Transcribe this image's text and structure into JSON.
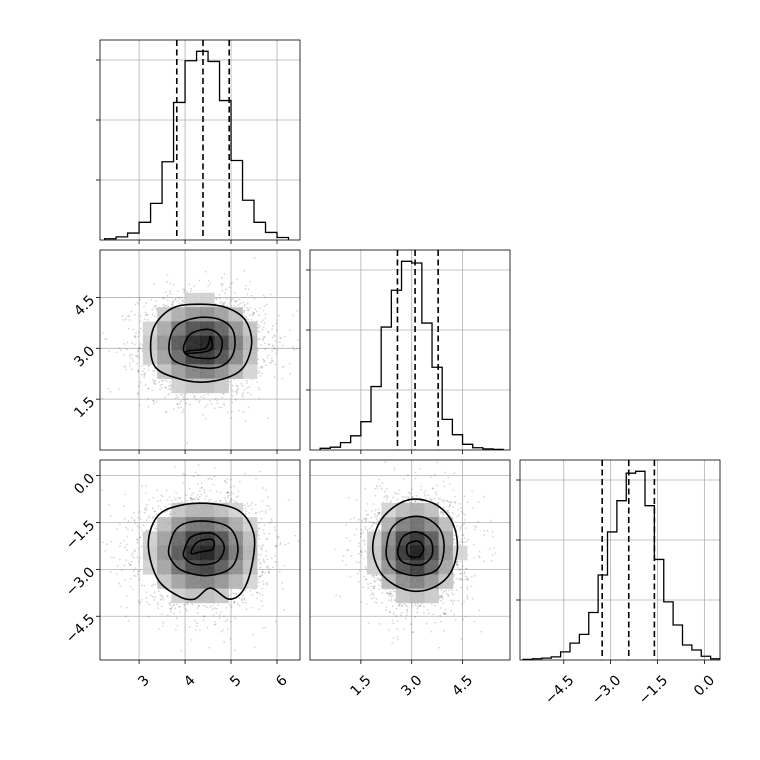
{
  "chart_data": {
    "type": "corner",
    "grid": true,
    "parameters": [
      {
        "range": [
          2.15,
          6.5
        ],
        "ticks": [
          3,
          4,
          5,
          6
        ],
        "tick_labels": [
          "3",
          "4",
          "5",
          "6"
        ],
        "quantiles": [
          3.82,
          4.39,
          4.96
        ],
        "hist_bins": [
          2.25,
          2.5,
          2.75,
          3.0,
          3.25,
          3.5,
          3.75,
          4.0,
          4.25,
          4.5,
          4.75,
          5.0,
          5.25,
          5.5,
          5.75,
          6.0,
          6.25
        ],
        "hist_counts": [
          2,
          5,
          11,
          28,
          58,
          124,
          218,
          284,
          299,
          283,
          221,
          126,
          63,
          28,
          12,
          4
        ]
      },
      {
        "range": [
          0.0,
          5.9
        ],
        "ticks": [
          1.5,
          3.0,
          4.5
        ],
        "tick_labels": [
          "1.5",
          "3.0",
          "4.5"
        ],
        "quantiles": [
          2.58,
          3.1,
          3.78
        ],
        "hist_bins": [
          0.3,
          0.6,
          0.9,
          1.2,
          1.5,
          1.8,
          2.1,
          2.4,
          2.7,
          3.0,
          3.3,
          3.6,
          3.9,
          4.2,
          4.5,
          4.8,
          5.1,
          5.4,
          5.7
        ],
        "hist_counts": [
          3,
          5,
          13,
          25,
          50,
          112,
          217,
          282,
          333,
          330,
          224,
          146,
          54,
          27,
          10,
          4,
          2,
          1
        ]
      },
      {
        "range": [
          -5.9,
          0.5
        ],
        "ticks": [
          -4.5,
          -3.0,
          -1.5,
          0.0
        ],
        "tick_labels": [
          "−4.5",
          "−3.0",
          "−1.5",
          "0.0"
        ],
        "quantiles": [
          -3.27,
          -2.42,
          -1.6
        ],
        "hist_bins": [
          -5.8,
          -5.5,
          -5.2,
          -4.9,
          -4.6,
          -4.3,
          -4.0,
          -3.7,
          -3.4,
          -3.1,
          -2.8,
          -2.5,
          -2.2,
          -1.9,
          -1.6,
          -1.3,
          -1.0,
          -0.7,
          -0.4,
          -0.1,
          0.2,
          0.5
        ],
        "hist_counts": [
          1,
          2,
          3,
          5,
          13,
          27,
          41,
          76,
          136,
          205,
          255,
          299,
          302,
          247,
          161,
          93,
          56,
          24,
          16,
          6,
          2
        ]
      }
    ],
    "pairs": [
      {
        "x_param": 0,
        "y_param": 1,
        "center": [
          4.39,
          3.1
        ],
        "spread": [
          0.68,
          0.75
        ],
        "correlation": 0.0,
        "contours": [
          [
            [
              3.25,
              3.05
            ],
            [
              3.35,
              3.7
            ],
            [
              3.75,
              4.2
            ],
            [
              4.35,
              4.3
            ],
            [
              4.9,
              4.2
            ],
            [
              5.3,
              3.85
            ],
            [
              5.45,
              3.2
            ],
            [
              5.3,
              2.5
            ],
            [
              4.95,
              2.15
            ],
            [
              4.35,
              2.0
            ],
            [
              3.75,
              2.15
            ],
            [
              3.35,
              2.45
            ]
          ],
          [
            [
              3.65,
              3.1
            ],
            [
              3.8,
              3.65
            ],
            [
              4.25,
              3.9
            ],
            [
              4.75,
              3.85
            ],
            [
              5.05,
              3.5
            ],
            [
              5.05,
              2.85
            ],
            [
              4.75,
              2.45
            ],
            [
              4.2,
              2.45
            ],
            [
              3.75,
              2.65
            ]
          ],
          [
            [
              3.98,
              3.1
            ],
            [
              4.15,
              3.45
            ],
            [
              4.55,
              3.55
            ],
            [
              4.8,
              3.25
            ],
            [
              4.7,
              2.75
            ],
            [
              4.25,
              2.72
            ],
            [
              4.0,
              2.85
            ]
          ],
          [
            [
              4.05,
              2.92
            ],
            [
              4.45,
              3.0
            ],
            [
              4.55,
              3.35
            ],
            [
              4.55,
              2.95
            ],
            [
              4.05,
              2.85
            ]
          ]
        ]
      },
      {
        "x_param": 0,
        "y_param": 2,
        "center": [
          4.39,
          -2.42
        ],
        "spread": [
          0.68,
          0.9
        ],
        "correlation": 0.0,
        "contours": [
          [
            [
              3.2,
              -2.2
            ],
            [
              3.4,
              -1.3
            ],
            [
              3.9,
              -0.95
            ],
            [
              4.6,
              -0.9
            ],
            [
              5.2,
              -1.15
            ],
            [
              5.5,
              -1.9
            ],
            [
              5.45,
              -2.9
            ],
            [
              5.25,
              -3.7
            ],
            [
              4.95,
              -3.95
            ],
            [
              4.55,
              -3.6
            ],
            [
              4.2,
              -3.95
            ],
            [
              3.85,
              -3.85
            ],
            [
              3.4,
              -3.3
            ]
          ],
          [
            [
              3.65,
              -2.3
            ],
            [
              3.85,
              -1.65
            ],
            [
              4.35,
              -1.45
            ],
            [
              4.95,
              -1.65
            ],
            [
              5.15,
              -2.3
            ],
            [
              5.0,
              -2.95
            ],
            [
              4.5,
              -3.2
            ],
            [
              3.95,
              -3.05
            ],
            [
              3.7,
              -2.7
            ]
          ],
          [
            [
              3.98,
              -2.4
            ],
            [
              4.15,
              -1.95
            ],
            [
              4.6,
              -1.85
            ],
            [
              4.85,
              -2.25
            ],
            [
              4.7,
              -2.75
            ],
            [
              4.25,
              -2.85
            ],
            [
              4.0,
              -2.65
            ]
          ],
          [
            [
              4.15,
              -2.35
            ],
            [
              4.3,
              -2.1
            ],
            [
              4.6,
              -2.05
            ],
            [
              4.6,
              -2.35
            ],
            [
              4.3,
              -2.45
            ],
            [
              4.15,
              -2.5
            ]
          ]
        ]
      },
      {
        "x_param": 1,
        "y_param": 2,
        "center": [
          3.1,
          -2.42
        ],
        "spread": [
          0.72,
          0.9
        ],
        "correlation": 0.0,
        "contours": [
          [
            [
              1.85,
              -2.3
            ],
            [
              2.05,
              -1.5
            ],
            [
              2.55,
              -0.95
            ],
            [
              3.1,
              -0.75
            ],
            [
              3.75,
              -0.95
            ],
            [
              4.2,
              -1.5
            ],
            [
              4.35,
              -2.3
            ],
            [
              4.15,
              -3.1
            ],
            [
              3.7,
              -3.55
            ],
            [
              3.1,
              -3.7
            ],
            [
              2.5,
              -3.5
            ],
            [
              2.05,
              -3.05
            ]
          ],
          [
            [
              2.25,
              -2.35
            ],
            [
              2.4,
              -1.7
            ],
            [
              2.85,
              -1.35
            ],
            [
              3.4,
              -1.35
            ],
            [
              3.85,
              -1.75
            ],
            [
              3.95,
              -2.4
            ],
            [
              3.75,
              -3.0
            ],
            [
              3.15,
              -3.2
            ],
            [
              2.55,
              -3.05
            ],
            [
              2.3,
              -2.75
            ]
          ],
          [
            [
              2.6,
              -2.35
            ],
            [
              2.75,
              -1.95
            ],
            [
              3.15,
              -1.8
            ],
            [
              3.55,
              -2.05
            ],
            [
              3.6,
              -2.55
            ],
            [
              3.3,
              -2.85
            ],
            [
              2.8,
              -2.8
            ],
            [
              2.62,
              -2.6
            ]
          ],
          [
            [
              2.88,
              -2.2
            ],
            [
              3.2,
              -2.1
            ],
            [
              3.35,
              -2.35
            ],
            [
              3.2,
              -2.6
            ],
            [
              2.9,
              -2.55
            ]
          ]
        ]
      }
    ]
  }
}
